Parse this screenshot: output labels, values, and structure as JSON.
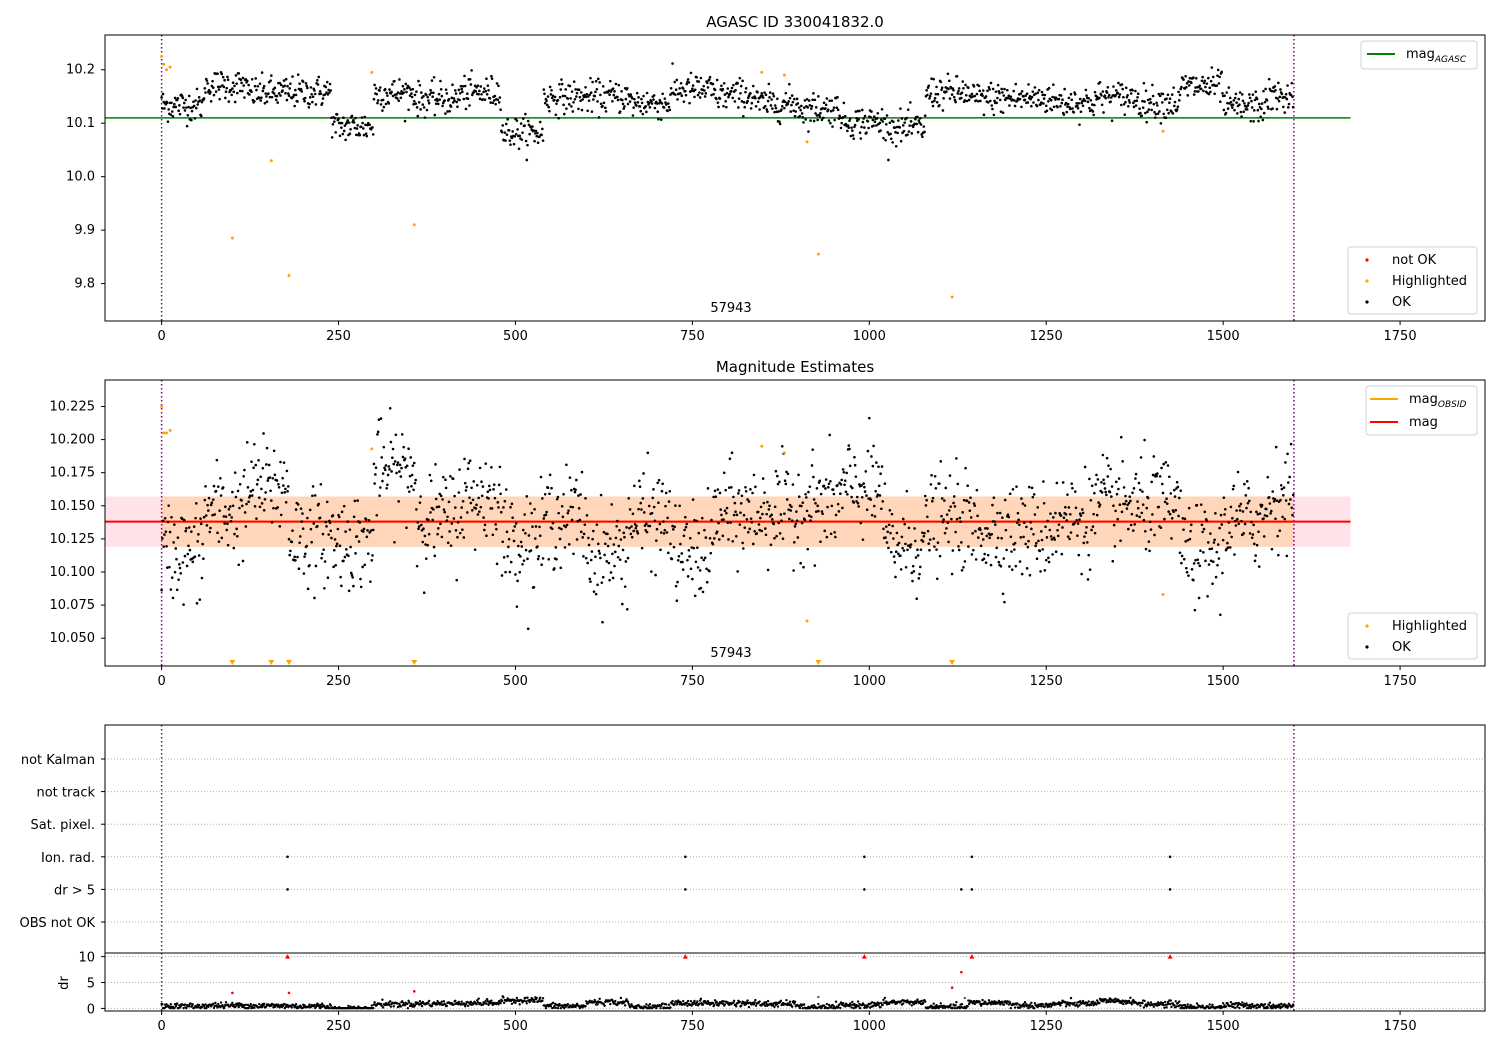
{
  "figure": {
    "background": "#ffffff"
  },
  "chart_data": [
    {
      "type": "scatter",
      "title": "AGASC ID 330041832.0",
      "annotation": "57943",
      "xlim": [
        -80,
        1870
      ],
      "ylim": [
        9.73,
        10.265
      ],
      "xticks": [
        0,
        250,
        500,
        750,
        1000,
        1250,
        1500,
        1750
      ],
      "xtick_labels": [
        "0",
        "250",
        "500",
        "750",
        "1000",
        "1250",
        "1500",
        "1750"
      ],
      "yticks": [
        9.8,
        9.9,
        10.0,
        10.1,
        10.2
      ],
      "ytick_labels": [
        "9.8",
        "9.9",
        "10.0",
        "10.1",
        "10.2"
      ],
      "vlines": [
        0,
        1600
      ],
      "vline_color": "#800080",
      "hline": {
        "label": "mag",
        "subscript": "AGASC",
        "value": 10.11,
        "xmax": 1680,
        "color": "#008000"
      },
      "ok_points": {
        "n": 1600,
        "base": 10.14,
        "spread": 0.025,
        "color": "#000000"
      },
      "highlighted": {
        "color": "#ffa500",
        "x": [
          0,
          3,
          7,
          12,
          100,
          155,
          180,
          297,
          357,
          848,
          880,
          912,
          928,
          1117,
          1415
        ],
        "y": [
          10.225,
          10.21,
          10.2,
          10.205,
          9.885,
          10.03,
          9.815,
          10.195,
          9.91,
          10.195,
          10.19,
          10.065,
          9.855,
          9.775,
          10.085
        ]
      },
      "legend_lines": [
        {
          "label": "mag",
          "subscript": "AGASC",
          "color": "#008000"
        }
      ],
      "legend_points": [
        {
          "label": "not OK",
          "color": "#ff0000"
        },
        {
          "label": "Highlighted",
          "color": "#ffa500"
        },
        {
          "label": "OK",
          "color": "#000000"
        }
      ]
    },
    {
      "type": "scatter",
      "title": "Magnitude Estimates",
      "annotation": "57943",
      "xlim": [
        -80,
        1870
      ],
      "ylim": [
        10.029,
        10.245
      ],
      "xticks": [
        0,
        250,
        500,
        750,
        1000,
        1250,
        1500,
        1750
      ],
      "xtick_labels": [
        "0",
        "250",
        "500",
        "750",
        "1000",
        "1250",
        "1500",
        "1750"
      ],
      "yticks": [
        10.05,
        10.075,
        10.1,
        10.125,
        10.15,
        10.175,
        10.2,
        10.225
      ],
      "ytick_labels": [
        "10.050",
        "10.075",
        "10.100",
        "10.125",
        "10.150",
        "10.175",
        "10.200",
        "10.225"
      ],
      "vlines": [
        0,
        1600
      ],
      "vline_color": "#800080",
      "band_outer": {
        "y0": 10.119,
        "y1": 10.157,
        "color": "#ffc0cb"
      },
      "band_inner": {
        "x0": 0,
        "x1": 1600,
        "y0": 10.119,
        "y1": 10.157,
        "color": "#ffa500"
      },
      "mag_line": {
        "label": "mag",
        "value": 10.138,
        "xmax": 1680,
        "color": "#ff0000"
      },
      "obsid_line": {
        "label": "mag",
        "subscript": "OBSID",
        "value": 10.138,
        "color": "#ffa500"
      },
      "ok_points": {
        "n": 1600,
        "base": 10.138,
        "spread": 0.03,
        "color": "#000000"
      },
      "highlighted": {
        "color": "#ffa500",
        "x": [
          0,
          3,
          7,
          12,
          297,
          848,
          880,
          912,
          1415
        ],
        "y": [
          10.225,
          10.205,
          10.205,
          10.207,
          10.193,
          10.195,
          10.19,
          10.063,
          10.083
        ]
      },
      "off_scale_markers": {
        "color": "#ffa500",
        "x": [
          100,
          155,
          180,
          357,
          928,
          1117
        ]
      },
      "legend_lines": [
        {
          "label": "mag",
          "subscript": "OBSID",
          "color": "#ffa500"
        },
        {
          "label": "mag",
          "subscript": "",
          "color": "#ff0000"
        }
      ],
      "legend_points": [
        {
          "label": "Highlighted",
          "color": "#ffa500"
        },
        {
          "label": "OK",
          "color": "#000000"
        }
      ]
    },
    {
      "type": "scatter",
      "title": "",
      "flag_rows": [
        "not Kalman",
        "not track",
        "Sat. pixel.",
        "Ion. rad.",
        "dr > 5",
        "OBS not OK"
      ],
      "flag_points": [
        {
          "row": "Ion. rad.",
          "x": [
            178,
            740,
            993,
            1145,
            1425
          ]
        },
        {
          "row": "dr > 5",
          "x": [
            178,
            740,
            993,
            1130,
            1145,
            1425
          ]
        }
      ],
      "vlines": [
        0,
        1600
      ],
      "vline_color": "#800080",
      "xlim": [
        -80,
        1870
      ],
      "xticks": [
        0,
        250,
        500,
        750,
        1000,
        1250,
        1500,
        1750
      ],
      "xtick_labels": [
        "0",
        "250",
        "500",
        "750",
        "1000",
        "1250",
        "1500",
        "1750"
      ]
    },
    {
      "type": "scatter",
      "ylabel": "dr",
      "xlim": [
        -80,
        1870
      ],
      "ylim": [
        -0.5,
        10.7
      ],
      "yticks": [
        0,
        5,
        10
      ],
      "ytick_labels": [
        "0",
        "5",
        "10"
      ],
      "xticks": [
        0,
        250,
        500,
        750,
        1000,
        1250,
        1500,
        1750
      ],
      "xtick_labels": [
        "0",
        "250",
        "500",
        "750",
        "1000",
        "1250",
        "1500",
        "1750"
      ],
      "vlines": [
        0,
        1600
      ],
      "vline_color": "#800080",
      "ok_points": {
        "n": 1600,
        "base": 0.7,
        "spread": 0.5,
        "color": "#000000"
      },
      "clipped_markers": {
        "color": "#ff0000",
        "x": [
          178,
          740,
          993,
          1145,
          1425
        ],
        "y": 10
      },
      "red_points": {
        "color": "#ff0000",
        "x": [
          100,
          180,
          357,
          1117,
          1130
        ],
        "y": [
          3.0,
          3.0,
          3.3,
          4.0,
          7.0
        ]
      },
      "gray_points": {
        "color": "#555555",
        "x": [
          928,
          1135
        ],
        "y": [
          2.2,
          2.0
        ]
      }
    }
  ]
}
